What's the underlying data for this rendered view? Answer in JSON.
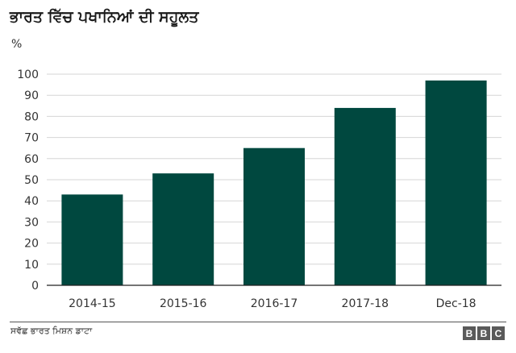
{
  "title": "ਭਾਰਤ ਵਿੱਚ ਪਖਾਨਿਆਂ ਦੀ ਸਹੂਲਤ",
  "unit_label": "%",
  "source": "ਸਵੱਛ ਭਾਰਤ ਮਿਸ਼ਨ ਡਾਟਾ",
  "logo": [
    "B",
    "B",
    "C"
  ],
  "colors": {
    "bar": "#00483f",
    "grid": "#d6d6d6",
    "axis": "#222222",
    "text": "#333333"
  },
  "chart_data": {
    "type": "bar",
    "title": "ਭਾਰਤ ਵਿੱਚ ਪਖਾਨਿਆਂ ਦੀ ਸਹੂਲਤ",
    "ylabel": "%",
    "xlabel": "",
    "categories": [
      "2014-15",
      "2015-16",
      "2016-17",
      "2017-18",
      "Dec-18"
    ],
    "values": [
      43,
      53,
      65,
      84,
      97
    ],
    "ylim": [
      0,
      100
    ],
    "yticks": [
      0,
      10,
      20,
      30,
      40,
      50,
      60,
      70,
      80,
      90,
      100
    ],
    "grid": true,
    "legend": "none"
  }
}
